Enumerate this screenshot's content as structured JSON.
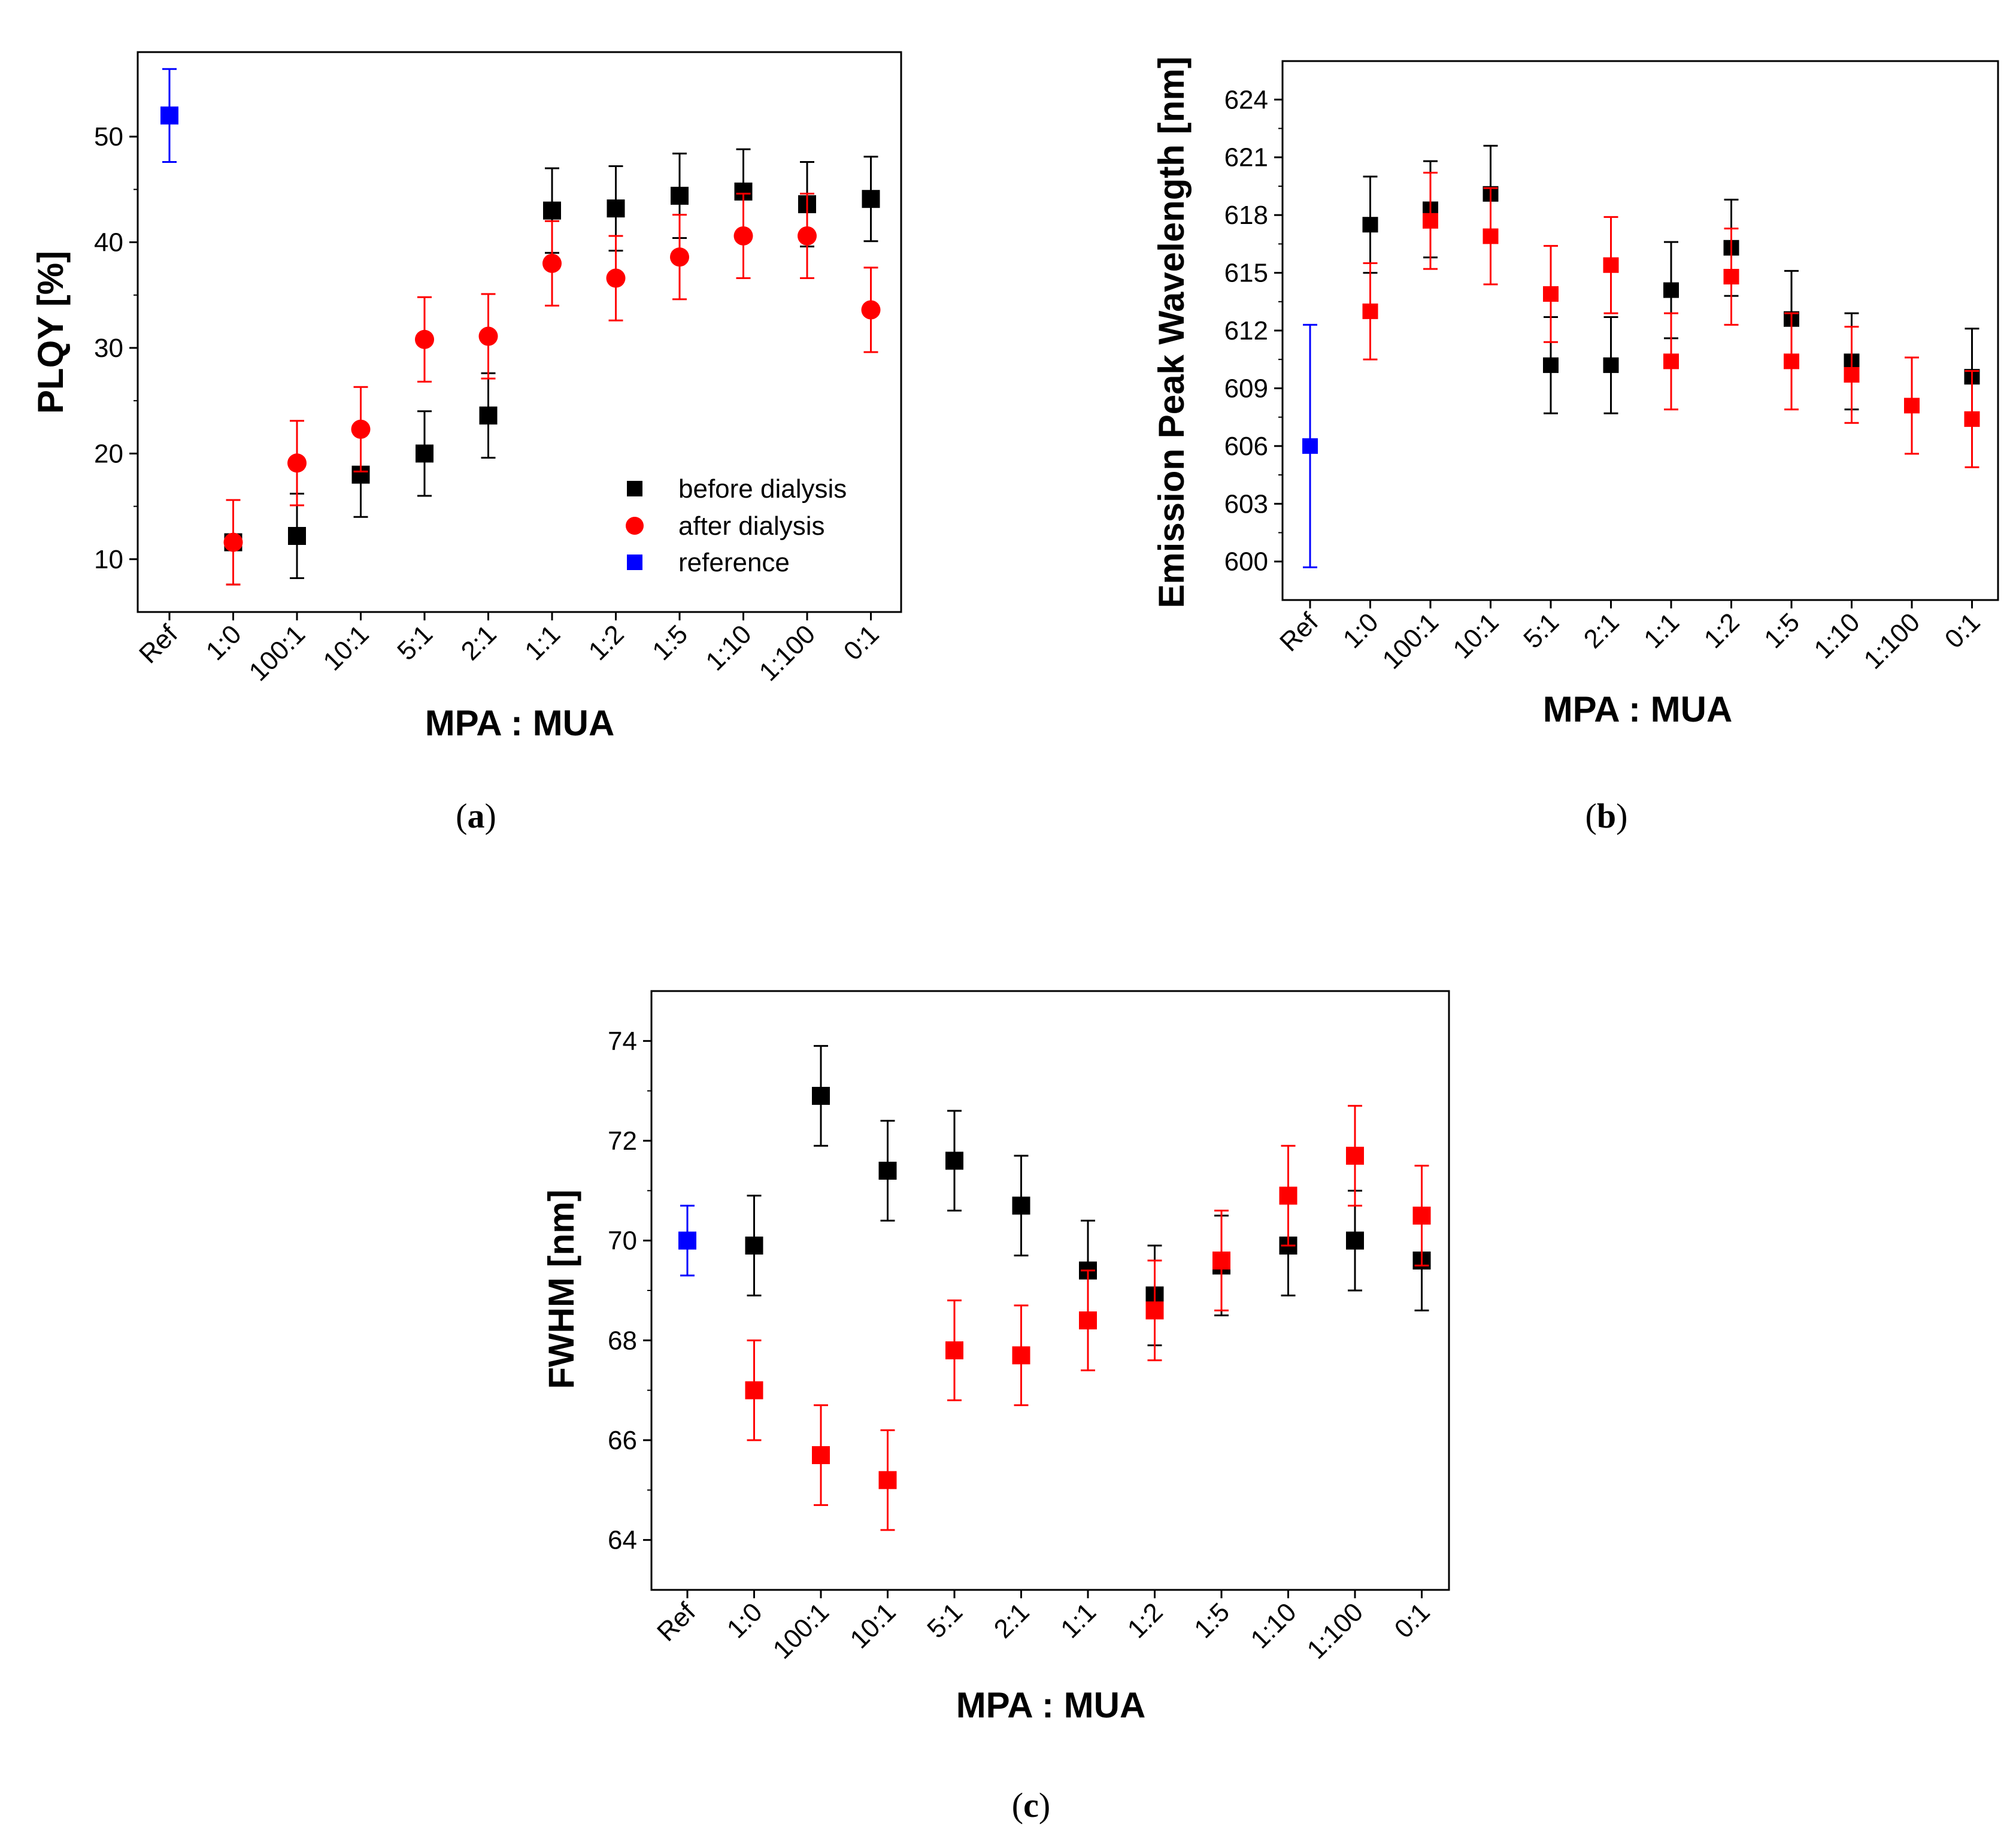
{
  "colors": {
    "before": "#000000",
    "after": "#ff0000",
    "reference": "#0000ff"
  },
  "chart_data": [
    {
      "id": "a",
      "type": "scatter",
      "caption": "a",
      "xlabel": "MPA : MUA",
      "ylabel": "PLQY [%]",
      "categories": [
        "Ref",
        "1:0",
        "100:1",
        "10:1",
        "5:1",
        "2:1",
        "1:1",
        "1:2",
        "1:5",
        "1:10",
        "1:100",
        "0:1"
      ],
      "ylim": [
        5,
        58
      ],
      "yticks": [
        10,
        20,
        30,
        40,
        50
      ],
      "legend": {
        "position": "bottom-right",
        "entries": [
          {
            "label": "before dialysis",
            "series": "before"
          },
          {
            "label": "after dialysis",
            "series": "after"
          },
          {
            "label": "reference",
            "series": "reference"
          }
        ]
      },
      "series": [
        {
          "name": "before dialysis",
          "key": "before",
          "marker": "square",
          "values": [
            null,
            11.6,
            12.2,
            18.0,
            20.0,
            23.6,
            43.0,
            43.2,
            44.4,
            44.8,
            43.6,
            44.1
          ],
          "errors": [
            null,
            4.0,
            4.0,
            4.0,
            4.0,
            4.0,
            4.0,
            4.0,
            4.0,
            4.0,
            4.0,
            4.0
          ]
        },
        {
          "name": "after dialysis",
          "key": "after",
          "marker": "circle",
          "values": [
            null,
            11.6,
            19.1,
            22.3,
            30.8,
            31.1,
            38.0,
            36.6,
            38.6,
            40.6,
            40.6,
            33.6
          ],
          "errors": [
            null,
            4.0,
            4.0,
            4.0,
            4.0,
            4.0,
            4.0,
            4.0,
            4.0,
            4.0,
            4.0,
            4.0
          ]
        },
        {
          "name": "reference",
          "key": "reference",
          "marker": "square",
          "values": [
            52.0,
            null,
            null,
            null,
            null,
            null,
            null,
            null,
            null,
            null,
            null,
            null
          ],
          "errors": [
            4.4,
            null,
            null,
            null,
            null,
            null,
            null,
            null,
            null,
            null,
            null,
            null
          ]
        }
      ]
    },
    {
      "id": "b",
      "type": "scatter",
      "caption": "b",
      "xlabel": "MPA : MUA",
      "ylabel": "Emission Peak Wavelength [nm]",
      "categories": [
        "Ref",
        "1:0",
        "100:1",
        "10:1",
        "5:1",
        "2:1",
        "1:1",
        "1:2",
        "1:5",
        "1:10",
        "1:100",
        "0:1"
      ],
      "ylim": [
        598,
        626
      ],
      "yticks": [
        600,
        603,
        606,
        609,
        612,
        615,
        618,
        621,
        624
      ],
      "series": [
        {
          "name": "before dialysis",
          "key": "before",
          "marker": "square",
          "values": [
            null,
            617.5,
            618.3,
            619.1,
            610.2,
            610.2,
            614.1,
            616.3,
            612.6,
            610.4,
            null,
            609.6
          ],
          "errors": [
            null,
            2.5,
            2.5,
            2.5,
            2.5,
            2.5,
            2.5,
            2.5,
            2.5,
            2.5,
            null,
            2.5
          ]
        },
        {
          "name": "after dialysis",
          "key": "after",
          "marker": "square",
          "values": [
            null,
            613.0,
            617.7,
            616.9,
            613.9,
            615.4,
            610.4,
            614.8,
            610.4,
            609.7,
            608.1,
            607.4
          ],
          "errors": [
            null,
            2.5,
            2.5,
            2.5,
            2.5,
            2.5,
            2.5,
            2.5,
            2.5,
            2.5,
            2.5,
            2.5
          ]
        },
        {
          "name": "reference",
          "key": "reference",
          "marker": "square",
          "values": [
            606.0,
            null,
            null,
            null,
            null,
            null,
            null,
            null,
            null,
            null,
            null,
            null
          ],
          "errors": [
            6.3,
            null,
            null,
            null,
            null,
            null,
            null,
            null,
            null,
            null,
            null,
            null
          ]
        }
      ]
    },
    {
      "id": "c",
      "type": "scatter",
      "caption": "c",
      "xlabel": "MPA : MUA",
      "ylabel": "FWHM [nm]",
      "categories": [
        "Ref",
        "1:0",
        "100:1",
        "10:1",
        "5:1",
        "2:1",
        "1:1",
        "1:2",
        "1:5",
        "1:10",
        "1:100",
        "0:1"
      ],
      "ylim": [
        63,
        75
      ],
      "yticks": [
        64,
        66,
        68,
        70,
        72,
        74
      ],
      "series": [
        {
          "name": "before dialysis",
          "key": "before",
          "marker": "square",
          "values": [
            null,
            69.9,
            72.9,
            71.4,
            71.6,
            70.7,
            69.4,
            68.9,
            69.5,
            69.9,
            70.0,
            69.6
          ],
          "errors": [
            null,
            1.0,
            1.0,
            1.0,
            1.0,
            1.0,
            1.0,
            1.0,
            1.0,
            1.0,
            1.0,
            1.0
          ]
        },
        {
          "name": "after dialysis",
          "key": "after",
          "marker": "square",
          "values": [
            null,
            67.0,
            65.7,
            65.2,
            67.8,
            67.7,
            68.4,
            68.6,
            69.6,
            70.9,
            71.7,
            70.5
          ],
          "errors": [
            null,
            1.0,
            1.0,
            1.0,
            1.0,
            1.0,
            1.0,
            1.0,
            1.0,
            1.0,
            1.0,
            1.0
          ]
        },
        {
          "name": "reference",
          "key": "reference",
          "marker": "square",
          "values": [
            70.0,
            null,
            null,
            null,
            null,
            null,
            null,
            null,
            null,
            null,
            null,
            null
          ],
          "errors": [
            0.7,
            null,
            null,
            null,
            null,
            null,
            null,
            null,
            null,
            null,
            null,
            null
          ]
        }
      ]
    }
  ]
}
